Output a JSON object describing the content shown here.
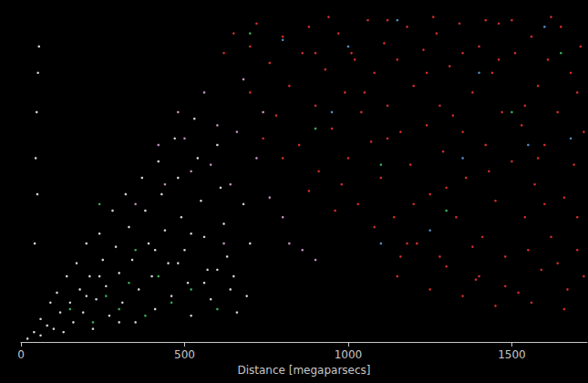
{
  "chart_data": {
    "type": "scatter",
    "x_label": "Distance [megaparsecs]",
    "xlim": [
      0,
      1730
    ],
    "xticks": [
      0,
      500,
      1000,
      1500
    ],
    "ylim": [
      0,
      1000
    ],
    "tick_labels": "x",
    "grid": false,
    "marker": "circle",
    "series": [
      {
        "color": "#e8322e",
        "values": [
          [
            620,
            880
          ],
          [
            650,
            940
          ],
          [
            700,
            760
          ],
          [
            720,
            970
          ],
          [
            760,
            850
          ],
          [
            780,
            690
          ],
          [
            800,
            930
          ],
          [
            820,
            780
          ],
          [
            850,
            600
          ],
          [
            860,
            880
          ],
          [
            880,
            960
          ],
          [
            900,
            720
          ],
          [
            910,
            520
          ],
          [
            930,
            830
          ],
          [
            950,
            650
          ],
          [
            970,
            940
          ],
          [
            990,
            760
          ],
          [
            1000,
            560
          ],
          [
            1010,
            880
          ],
          [
            1030,
            420
          ],
          [
            1040,
            700
          ],
          [
            1060,
            980
          ],
          [
            1070,
            610
          ],
          [
            1080,
            820
          ],
          [
            1100,
            500
          ],
          [
            1110,
            910
          ],
          [
            1120,
            720
          ],
          [
            1140,
            380
          ],
          [
            1150,
            860
          ],
          [
            1160,
            640
          ],
          [
            1180,
            960
          ],
          [
            1190,
            540
          ],
          [
            1200,
            780
          ],
          [
            1210,
            300
          ],
          [
            1230,
            890
          ],
          [
            1240,
            660
          ],
          [
            1250,
            450
          ],
          [
            1270,
            940
          ],
          [
            1280,
            720
          ],
          [
            1290,
            580
          ],
          [
            1300,
            230
          ],
          [
            1310,
            840
          ],
          [
            1330,
            380
          ],
          [
            1340,
            970
          ],
          [
            1350,
            640
          ],
          [
            1360,
            500
          ],
          [
            1380,
            760
          ],
          [
            1390,
            190
          ],
          [
            1400,
            900
          ],
          [
            1410,
            320
          ],
          [
            1420,
            600
          ],
          [
            1440,
            820
          ],
          [
            1450,
            430
          ],
          [
            1460,
            970
          ],
          [
            1470,
            700
          ],
          [
            1480,
            260
          ],
          [
            1500,
            550
          ],
          [
            1510,
            880
          ],
          [
            1520,
            150
          ],
          [
            1530,
            660
          ],
          [
            1540,
            380
          ],
          [
            1560,
            930
          ],
          [
            1570,
            480
          ],
          [
            1580,
            780
          ],
          [
            1590,
            220
          ],
          [
            1600,
            600
          ],
          [
            1610,
            860
          ],
          [
            1620,
            320
          ],
          [
            1640,
            700
          ],
          [
            1650,
            960
          ],
          [
            1660,
            440
          ],
          [
            1670,
            160
          ],
          [
            1680,
            820
          ],
          [
            1690,
            540
          ],
          [
            1700,
            280
          ],
          [
            1710,
            900
          ],
          [
            1720,
            640
          ],
          [
            1560,
            120
          ],
          [
            1450,
            110
          ],
          [
            1350,
            140
          ],
          [
            1250,
            160
          ],
          [
            1150,
            200
          ],
          [
            1660,
            100
          ],
          [
            1700,
            380
          ],
          [
            1480,
            170
          ],
          [
            1380,
            290
          ],
          [
            1180,
            300
          ],
          [
            1080,
            350
          ],
          [
            960,
            400
          ],
          [
            880,
            460
          ],
          [
            800,
            560
          ],
          [
            740,
            620
          ],
          [
            1620,
            990
          ],
          [
            1420,
            980
          ],
          [
            1260,
            990
          ],
          [
            940,
            990
          ],
          [
            1120,
            980
          ],
          [
            1540,
            720
          ],
          [
            1300,
            470
          ],
          [
            1200,
            420
          ],
          [
            1600,
            420
          ],
          [
            1350,
            880
          ],
          [
            1050,
            760
          ],
          [
            980,
            480
          ],
          [
            1700,
            760
          ],
          [
            1500,
            980
          ],
          [
            1430,
            520
          ],
          [
            1580,
            560
          ],
          [
            1240,
            820
          ],
          [
            1120,
            620
          ],
          [
            1020,
            860
          ],
          [
            900,
            880
          ],
          [
            700,
            900
          ],
          [
            1320,
            690
          ],
          [
            1460,
            860
          ],
          [
            1640,
            240
          ],
          [
            1720,
            200
          ],
          [
            1550,
            280
          ],
          [
            1400,
            200
          ],
          [
            1280,
            260
          ],
          [
            1160,
            260
          ]
        ]
      },
      {
        "color": "#e8e8f0",
        "values": [
          [
            20,
            10
          ],
          [
            40,
            30
          ],
          [
            60,
            20
          ],
          [
            60,
            70
          ],
          [
            80,
            50
          ],
          [
            90,
            120
          ],
          [
            100,
            40
          ],
          [
            110,
            150
          ],
          [
            120,
            90
          ],
          [
            130,
            30
          ],
          [
            140,
            200
          ],
          [
            150,
            120
          ],
          [
            160,
            60
          ],
          [
            170,
            240
          ],
          [
            180,
            160
          ],
          [
            190,
            90
          ],
          [
            200,
            300
          ],
          [
            210,
            200
          ],
          [
            220,
            40
          ],
          [
            230,
            130
          ],
          [
            240,
            330
          ],
          [
            250,
            250
          ],
          [
            260,
            170
          ],
          [
            270,
            80
          ],
          [
            280,
            400
          ],
          [
            290,
            290
          ],
          [
            300,
            210
          ],
          [
            310,
            120
          ],
          [
            320,
            450
          ],
          [
            330,
            350
          ],
          [
            340,
            250
          ],
          [
            350,
            60
          ],
          [
            360,
            160
          ],
          [
            370,
            500
          ],
          [
            380,
            400
          ],
          [
            390,
            300
          ],
          [
            400,
            200
          ],
          [
            410,
            100
          ],
          [
            420,
            550
          ],
          [
            430,
            450
          ],
          [
            440,
            340
          ],
          [
            450,
            240
          ],
          [
            460,
            140
          ],
          [
            470,
            620
          ],
          [
            480,
            500
          ],
          [
            490,
            380
          ],
          [
            500,
            280
          ],
          [
            510,
            180
          ],
          [
            520,
            80
          ],
          [
            530,
            680
          ],
          [
            540,
            560
          ],
          [
            550,
            430
          ],
          [
            560,
            320
          ],
          [
            570,
            220
          ],
          [
            580,
            130
          ],
          [
            600,
            600
          ],
          [
            610,
            470
          ],
          [
            620,
            360
          ],
          [
            630,
            260
          ],
          [
            640,
            160
          ],
          [
            660,
            90
          ],
          [
            680,
            420
          ],
          [
            700,
            300
          ],
          [
            300,
            60
          ],
          [
            240,
            200
          ],
          [
            200,
            140
          ],
          [
            480,
            240
          ],
          [
            520,
            330
          ],
          [
            410,
            280
          ],
          [
            560,
            180
          ],
          [
            600,
            220
          ],
          [
            650,
            200
          ],
          [
            690,
            140
          ],
          [
            45,
            560
          ],
          [
            48,
            700
          ],
          [
            50,
            450
          ],
          [
            52,
            820
          ],
          [
            42,
            300
          ],
          [
            55,
            900
          ]
        ]
      },
      {
        "color": "#d9a0d0",
        "values": [
          [
            350,
            420
          ],
          [
            420,
            600
          ],
          [
            480,
            700
          ],
          [
            520,
            520
          ],
          [
            560,
            760
          ],
          [
            600,
            660
          ],
          [
            640,
            480
          ],
          [
            680,
            800
          ],
          [
            720,
            560
          ],
          [
            760,
            440
          ],
          [
            800,
            380
          ],
          [
            820,
            300
          ],
          [
            860,
            280
          ],
          [
            900,
            250
          ],
          [
            500,
            620
          ],
          [
            580,
            540
          ],
          [
            660,
            640
          ],
          [
            740,
            700
          ],
          [
            440,
            480
          ],
          [
            620,
            300
          ]
        ]
      },
      {
        "color": "#3fbf5f",
        "values": [
          [
            150,
            100
          ],
          [
            220,
            60
          ],
          [
            260,
            140
          ],
          [
            300,
            100
          ],
          [
            330,
            180
          ],
          [
            380,
            80
          ],
          [
            420,
            200
          ],
          [
            460,
            120
          ],
          [
            520,
            160
          ],
          [
            240,
            420
          ],
          [
            700,
            940
          ],
          [
            900,
            650
          ],
          [
            1100,
            540
          ],
          [
            1300,
            400
          ],
          [
            1500,
            700
          ],
          [
            1650,
            880
          ],
          [
            350,
            280
          ],
          [
            600,
            100
          ]
        ]
      },
      {
        "color": "#5b9bd5",
        "values": [
          [
            800,
            920
          ],
          [
            950,
            700
          ],
          [
            1150,
            980
          ],
          [
            1250,
            340
          ],
          [
            1400,
            820
          ],
          [
            1550,
            600
          ],
          [
            1680,
            620
          ],
          [
            1100,
            300
          ],
          [
            1600,
            960
          ],
          [
            1350,
            560
          ],
          [
            1000,
            900
          ]
        ]
      }
    ]
  }
}
